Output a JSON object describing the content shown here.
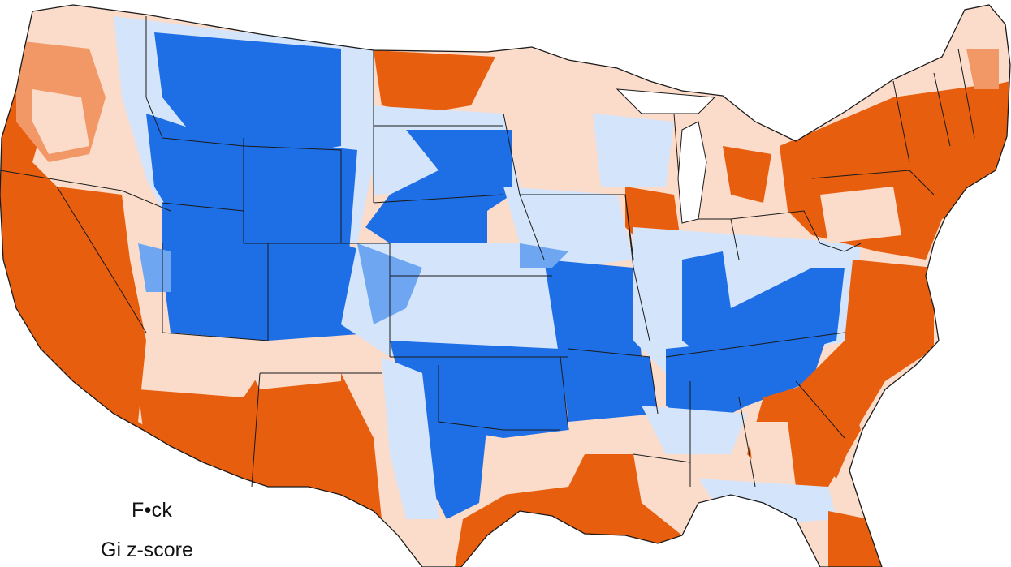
{
  "map": {
    "title": "F•ck",
    "subtitle": "Gi z-score",
    "colors": {
      "strong_hot": "#e85e0f",
      "mid_hot": "#f19866",
      "light_hot": "#fbdccb",
      "light_cold": "#d4e5fb",
      "mid_cold": "#6ea6f2",
      "strong_cold": "#1e6fe5",
      "border": "#1a1a1a",
      "background": "#ffffff"
    }
  }
}
